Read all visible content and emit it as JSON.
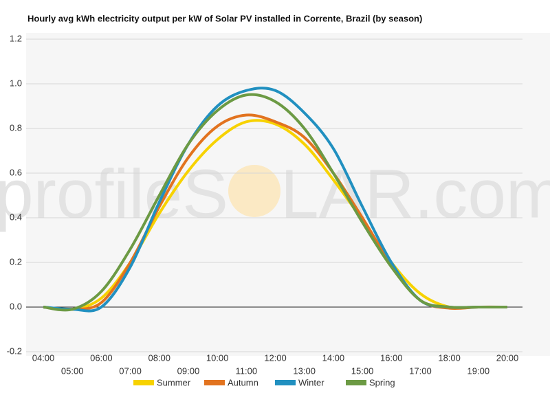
{
  "chart_data": {
    "type": "line",
    "title": "Hourly avg kWh electricity output per kW of Solar PV installed in Corrente, Brazil (by season)",
    "watermark": [
      "profileS",
      "LAR.com"
    ],
    "categories": [
      "04:00",
      "05:00",
      "06:00",
      "07:00",
      "08:00",
      "09:00",
      "10:00",
      "11:00",
      "12:00",
      "13:00",
      "14:00",
      "15:00",
      "16:00",
      "17:00",
      "18:00",
      "19:00",
      "20:00"
    ],
    "series": [
      {
        "name": "Summer",
        "color": "#f7d200",
        "values": [
          0,
          -0.01,
          0.04,
          0.2,
          0.42,
          0.61,
          0.75,
          0.83,
          0.82,
          0.73,
          0.57,
          0.39,
          0.2,
          0.06,
          0.0,
          0,
          0
        ]
      },
      {
        "name": "Autumn",
        "color": "#e2731f",
        "values": [
          0,
          -0.01,
          0.02,
          0.2,
          0.45,
          0.67,
          0.81,
          0.86,
          0.83,
          0.76,
          0.6,
          0.4,
          0.19,
          0.03,
          -0.005,
          0,
          0
        ]
      },
      {
        "name": "Winter",
        "color": "#2190c0",
        "values": [
          0,
          -0.01,
          0.0,
          0.18,
          0.47,
          0.73,
          0.9,
          0.97,
          0.97,
          0.87,
          0.71,
          0.45,
          0.2,
          0.03,
          0,
          0,
          0
        ]
      },
      {
        "name": "Spring",
        "color": "#6c9a44",
        "values": [
          0,
          -0.01,
          0.07,
          0.26,
          0.5,
          0.73,
          0.88,
          0.95,
          0.92,
          0.8,
          0.6,
          0.38,
          0.18,
          0.03,
          0,
          0,
          0
        ]
      }
    ],
    "ylim": [
      -0.2,
      1.2
    ],
    "yticks": [
      -0.2,
      0.0,
      0.2,
      0.4,
      0.6,
      0.8,
      1.0,
      1.2
    ],
    "grid": true,
    "legend": "bottom"
  }
}
